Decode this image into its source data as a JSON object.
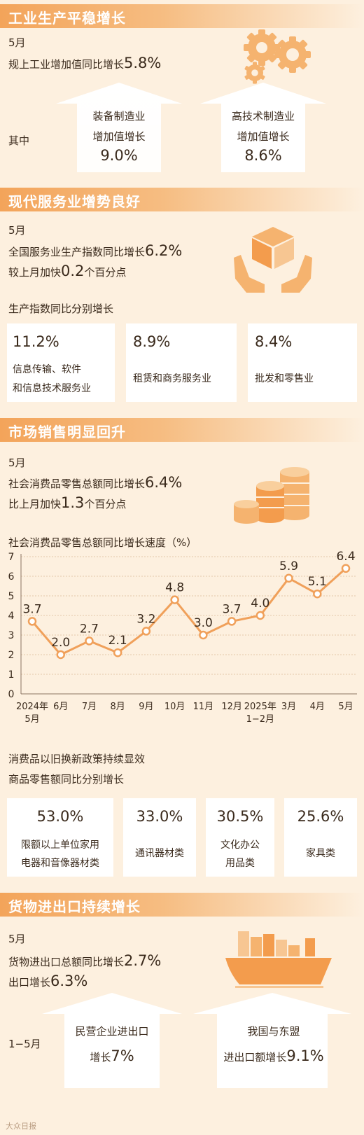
{
  "s1": {
    "title": "工业生产平稳增长",
    "month": "5月",
    "line_text": "规上工业增加值同比增长",
    "line_value": "5.8%",
    "side_label": "其中",
    "cards": [
      {
        "l1": "装备制造业",
        "l2": "增加值增长",
        "value": "9.0%"
      },
      {
        "l1": "高技术制造业",
        "l2": "增加值增长",
        "value": "8.6%"
      }
    ],
    "icon": "gears-icon"
  },
  "s2": {
    "title": "现代服务业增势良好",
    "month": "5月",
    "l1_text": "全国服务业生产指数同比增长",
    "l1_value": "6.2%",
    "l2_pre": "较上月加快",
    "l2_value": "0.2",
    "l2_post": "个百分点",
    "subtitle": "生产指数同比分别增长",
    "cards": [
      {
        "value": "11.2%",
        "l1": "信息传输、软件",
        "l2": "和信息技术服务业"
      },
      {
        "value": "8.9%",
        "l1": "租赁和商务服务业",
        "l2": ""
      },
      {
        "value": "8.4%",
        "l1": "批发和零售业",
        "l2": ""
      }
    ],
    "icon": "hands-box-icon"
  },
  "s3": {
    "title": "市场销售明显回升",
    "month": "5月",
    "l1_text": "社会消费品零售总额同比增长",
    "l1_value": "6.4%",
    "l2_pre": "比上月加快",
    "l2_value": "1.3",
    "l2_post": "个百分点",
    "icon": "coins-icon",
    "sub1": "消费品以旧换新政策持续显效",
    "sub2": "商品零售额同比分别增长",
    "cards": [
      {
        "value": "53.0%",
        "l1": "限额以上单位家用",
        "l2": "电器和音像器材类"
      },
      {
        "value": "33.0%",
        "l1": "通讯器材类",
        "l2": ""
      },
      {
        "value": "30.5%",
        "l1": "文化办公",
        "l2": "用品类"
      },
      {
        "value": "25.6%",
        "l1": "家具类",
        "l2": ""
      }
    ]
  },
  "chart_data": {
    "type": "line",
    "title": "社会消费品零售总额同比增长速度（%）",
    "categories": [
      {
        "l1": "2024年",
        "l2": "5月"
      },
      {
        "l1": "6月",
        "l2": ""
      },
      {
        "l1": "7月",
        "l2": ""
      },
      {
        "l1": "8月",
        "l2": ""
      },
      {
        "l1": "9月",
        "l2": ""
      },
      {
        "l1": "10月",
        "l2": ""
      },
      {
        "l1": "11月",
        "l2": ""
      },
      {
        "l1": "12月",
        "l2": ""
      },
      {
        "l1": "2025年",
        "l2": "1−2月"
      },
      {
        "l1": "3月",
        "l2": ""
      },
      {
        "l1": "4月",
        "l2": ""
      },
      {
        "l1": "5月",
        "l2": ""
      }
    ],
    "values": [
      3.7,
      2.0,
      2.7,
      2.1,
      3.2,
      4.8,
      3.0,
      3.7,
      4.0,
      5.9,
      5.1,
      6.4
    ],
    "labels": [
      "3.7",
      "2.0",
      "2.7",
      "2.1",
      "3.2",
      "4.8",
      "3.0",
      "3.7",
      "4.0",
      "5.9",
      "5.1",
      "6.4"
    ],
    "yticks": [
      "0",
      "1",
      "2",
      "3",
      "4",
      "5",
      "6",
      "7"
    ],
    "ylim": [
      0,
      7
    ],
    "grid": true,
    "color": "#f0a05a"
  },
  "s4": {
    "title": "货物进出口持续增长",
    "month": "5月",
    "l1_text": "货物进出口总额同比增长",
    "l1_value": "2.7%",
    "l2_text": "出口增长",
    "l2_value": "6.3%",
    "side_label": "1−5月",
    "cards": [
      {
        "l1": "民营企业进出口",
        "l2_text": "增长",
        "l2_value": "7%"
      },
      {
        "l1": "我国与东盟",
        "l2_text": "进出口额增长",
        "l2_value": "9.1%"
      }
    ],
    "icon": "cargo-ship-icon"
  },
  "watermark": "大众日报"
}
